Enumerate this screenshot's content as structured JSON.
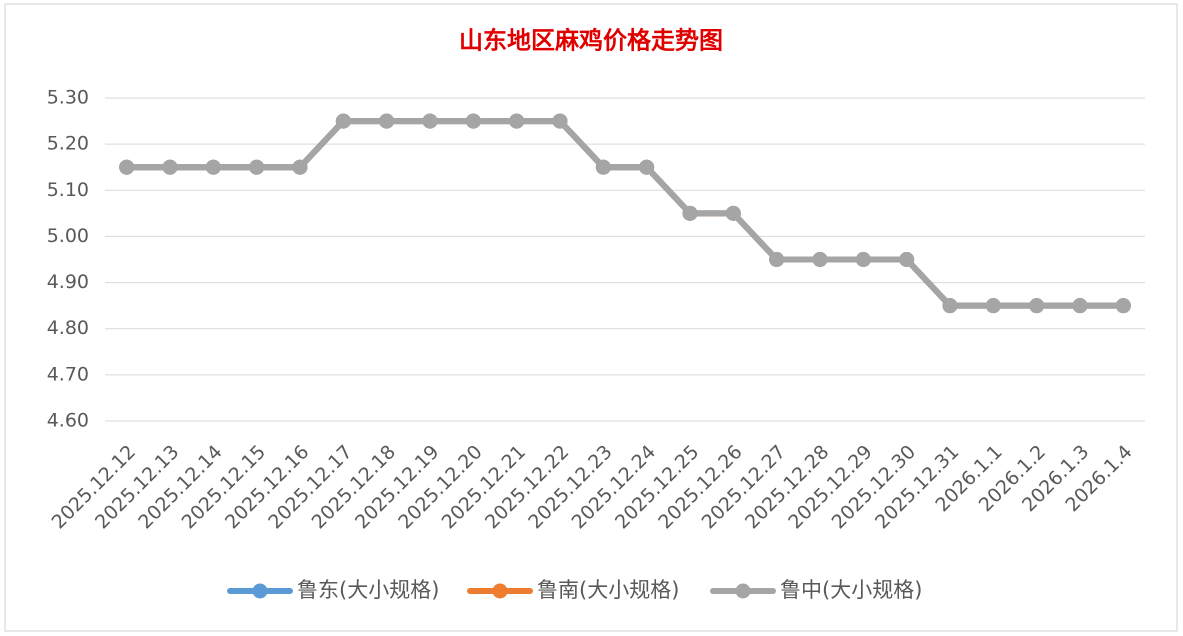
{
  "chart_data": {
    "type": "line",
    "title": "山东地区麻鸡价格走势图",
    "categories": [
      "2025.12.12",
      "2025.12.13",
      "2025.12.14",
      "2025.12.15",
      "2025.12.16",
      "2025.12.17",
      "2025.12.18",
      "2025.12.19",
      "2025.12.20",
      "2025.12.21",
      "2025.12.22",
      "2025.12.23",
      "2025.12.24",
      "2025.12.25",
      "2025.12.26",
      "2025.12.27",
      "2025.12.28",
      "2025.12.29",
      "2025.12.30",
      "2025.12.31",
      "2026.1.1",
      "2026.1.2",
      "2026.1.3",
      "2026.1.4"
    ],
    "series": [
      {
        "name": "鲁东(大小规格)",
        "color": "#5b9bd5",
        "values": [
          5.15,
          5.15,
          5.15,
          5.15,
          5.15,
          5.25,
          5.25,
          5.25,
          5.25,
          5.25,
          5.25,
          5.15,
          5.15,
          5.05,
          5.05,
          4.95,
          4.95,
          4.95,
          4.95,
          4.85,
          4.85,
          4.85,
          4.85,
          4.85
        ]
      },
      {
        "name": "鲁南(大小规格)",
        "color": "#ed7d31",
        "values": [
          5.15,
          5.15,
          5.15,
          5.15,
          5.15,
          5.25,
          5.25,
          5.25,
          5.25,
          5.25,
          5.25,
          5.15,
          5.15,
          5.05,
          5.05,
          4.95,
          4.95,
          4.95,
          4.95,
          4.85,
          4.85,
          4.85,
          4.85,
          4.85
        ]
      },
      {
        "name": "鲁中(大小规格)",
        "color": "#a5a5a5",
        "values": [
          5.15,
          5.15,
          5.15,
          5.15,
          5.15,
          5.25,
          5.25,
          5.25,
          5.25,
          5.25,
          5.25,
          5.15,
          5.15,
          5.05,
          5.05,
          4.95,
          4.95,
          4.95,
          4.95,
          4.85,
          4.85,
          4.85,
          4.85,
          4.85
        ]
      }
    ],
    "ylim": [
      4.6,
      5.3
    ],
    "yticks": [
      {
        "value": 4.6,
        "label": "4.60"
      },
      {
        "value": 4.7,
        "label": "4.70"
      },
      {
        "value": 4.8,
        "label": "4.80"
      },
      {
        "value": 4.9,
        "label": "4.90"
      },
      {
        "value": 5.0,
        "label": "5.00"
      },
      {
        "value": 5.1,
        "label": "5.10"
      },
      {
        "value": 5.2,
        "label": "5.20"
      },
      {
        "value": 5.3,
        "label": "5.30"
      }
    ],
    "grid": true,
    "legend": "bottom"
  }
}
